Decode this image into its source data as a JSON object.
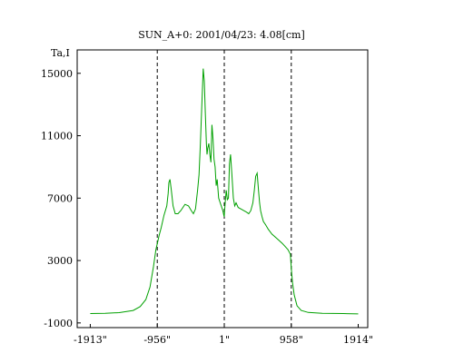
{
  "chart_data": {
    "type": "line",
    "title": "SUN_A+0: 2001/04/23: 4.08[cm]",
    "ylabel": "Ta,I",
    "xlabel": "",
    "xlim": [
      -2100,
      2050
    ],
    "ylim": [
      -1300,
      16500
    ],
    "x_ticks": [
      {
        "value": -1913,
        "label": "-1913\""
      },
      {
        "value": -956,
        "label": "-956\""
      },
      {
        "value": 1,
        "label": "1\""
      },
      {
        "value": 958,
        "label": "958\""
      },
      {
        "value": 1914,
        "label": "1914\""
      }
    ],
    "y_ticks": [
      {
        "value": 15000,
        "label": "15000"
      },
      {
        "value": 11000,
        "label": "11000"
      },
      {
        "value": 7000,
        "label": "7000"
      },
      {
        "value": 3000,
        "label": "3000"
      },
      {
        "value": -1000,
        "label": "-1000"
      }
    ],
    "vlines": [
      -956,
      1,
      958
    ],
    "grid": false,
    "series": [
      {
        "color": "#00a000",
        "x": [
          -1913,
          -1700,
          -1500,
          -1300,
          -1200,
          -1120,
          -1060,
          -1010,
          -975,
          -960,
          -950,
          -930,
          -900,
          -860,
          -820,
          -800,
          -790,
          -775,
          -755,
          -730,
          -700,
          -660,
          -620,
          -560,
          -510,
          -470,
          -440,
          -410,
          -380,
          -360,
          -340,
          -320,
          -300,
          -285,
          -270,
          -255,
          -245,
          -235,
          -220,
          -205,
          -190,
          -175,
          -160,
          -145,
          -130,
          -115,
          -100,
          -80,
          -50,
          -20,
          0,
          15,
          30,
          45,
          60,
          75,
          90,
          110,
          130,
          150,
          170,
          200,
          240,
          280,
          320,
          350,
          380,
          410,
          430,
          450,
          470,
          490,
          505,
          520,
          540,
          560,
          590,
          630,
          680,
          730,
          780,
          830,
          870,
          910,
          945,
          958,
          975,
          1000,
          1040,
          1100,
          1200,
          1400,
          1700,
          1914
        ],
        "y": [
          -400,
          -380,
          -340,
          -200,
          50,
          500,
          1300,
          2600,
          3700,
          4000,
          4200,
          4600,
          5100,
          5900,
          6500,
          7300,
          8000,
          8200,
          7500,
          6500,
          6000,
          6000,
          6200,
          6600,
          6500,
          6200,
          6000,
          6300,
          7500,
          8500,
          10500,
          13000,
          15300,
          14500,
          12500,
          10500,
          9800,
          10200,
          10500,
          9800,
          9300,
          11700,
          10800,
          9500,
          9000,
          7800,
          8200,
          7000,
          6600,
          6200,
          5800,
          6800,
          7500,
          6900,
          7000,
          9200,
          9800,
          8500,
          7000,
          6500,
          6700,
          6400,
          6300,
          6200,
          6100,
          6000,
          6200,
          6700,
          7500,
          8400,
          8600,
          7500,
          6700,
          6200,
          5800,
          5500,
          5300,
          5000,
          4700,
          4500,
          4300,
          4100,
          3900,
          3700,
          3400,
          2500,
          1600,
          800,
          100,
          -200,
          -330,
          -380,
          -400,
          -420
        ]
      }
    ]
  }
}
